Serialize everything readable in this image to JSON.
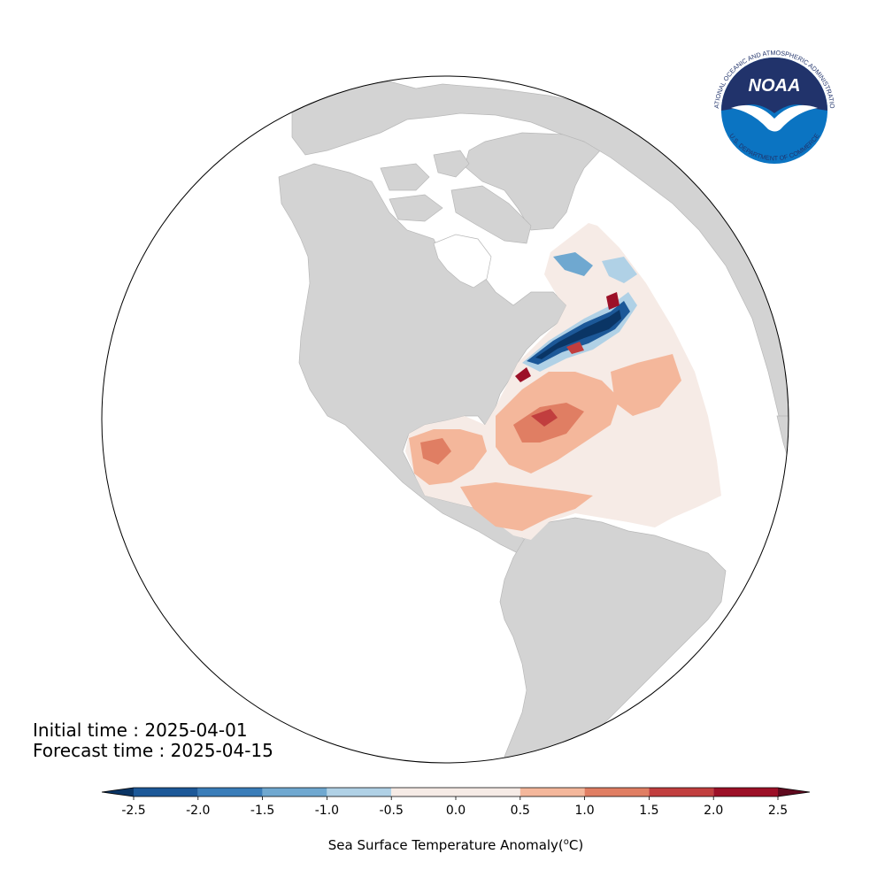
{
  "header": {
    "initial_time": "Initial time : 2025-04-01",
    "forecast_time": "Forecast time : 2025-04-15"
  },
  "logo": {
    "name": "NOAA",
    "ring_text": "NATIONAL OCEANIC AND ATMOSPHERIC ADMINISTRATION",
    "bottom_text": "U.S. DEPARTMENT OF COMMERCE",
    "colors": {
      "navy": "#21336b",
      "blue": "#0b74c2",
      "white": "#ffffff"
    }
  },
  "map": {
    "projection": "orthographic",
    "land_color": "#d3d3d3",
    "ocean_color": "#ffffff",
    "field": "Sea Surface Temperature Anomaly",
    "domain": "Western North Atlantic and Gulf of Mexico"
  },
  "colorbar": {
    "title": "Sea Surface Temperature Anomaly(",
    "title_sup": "o",
    "title_end": "C)",
    "ticks": [
      "-2.5",
      "-2.0",
      "-1.5",
      "-1.0",
      "-0.5",
      "0.0",
      "0.5",
      "1.0",
      "1.5",
      "2.0",
      "2.5"
    ],
    "bins": [
      {
        "from": -2.5,
        "to": -2.0,
        "color": "#1c5898"
      },
      {
        "from": -2.0,
        "to": -1.5,
        "color": "#3a7db9"
      },
      {
        "from": -1.5,
        "to": -1.0,
        "color": "#6fa8d0"
      },
      {
        "from": -1.0,
        "to": -0.5,
        "color": "#b0d1e6"
      },
      {
        "from": -0.5,
        "to": 0.5,
        "color": "#f6ebe6"
      },
      {
        "from": 0.5,
        "to": 1.0,
        "color": "#f4b79b"
      },
      {
        "from": 1.0,
        "to": 1.5,
        "color": "#e07e63"
      },
      {
        "from": 1.5,
        "to": 2.0,
        "color": "#c13e3e"
      },
      {
        "from": 2.0,
        "to": 2.5,
        "color": "#9c1027"
      }
    ],
    "under_color": "#0a3565",
    "over_color": "#5f0a1e"
  }
}
